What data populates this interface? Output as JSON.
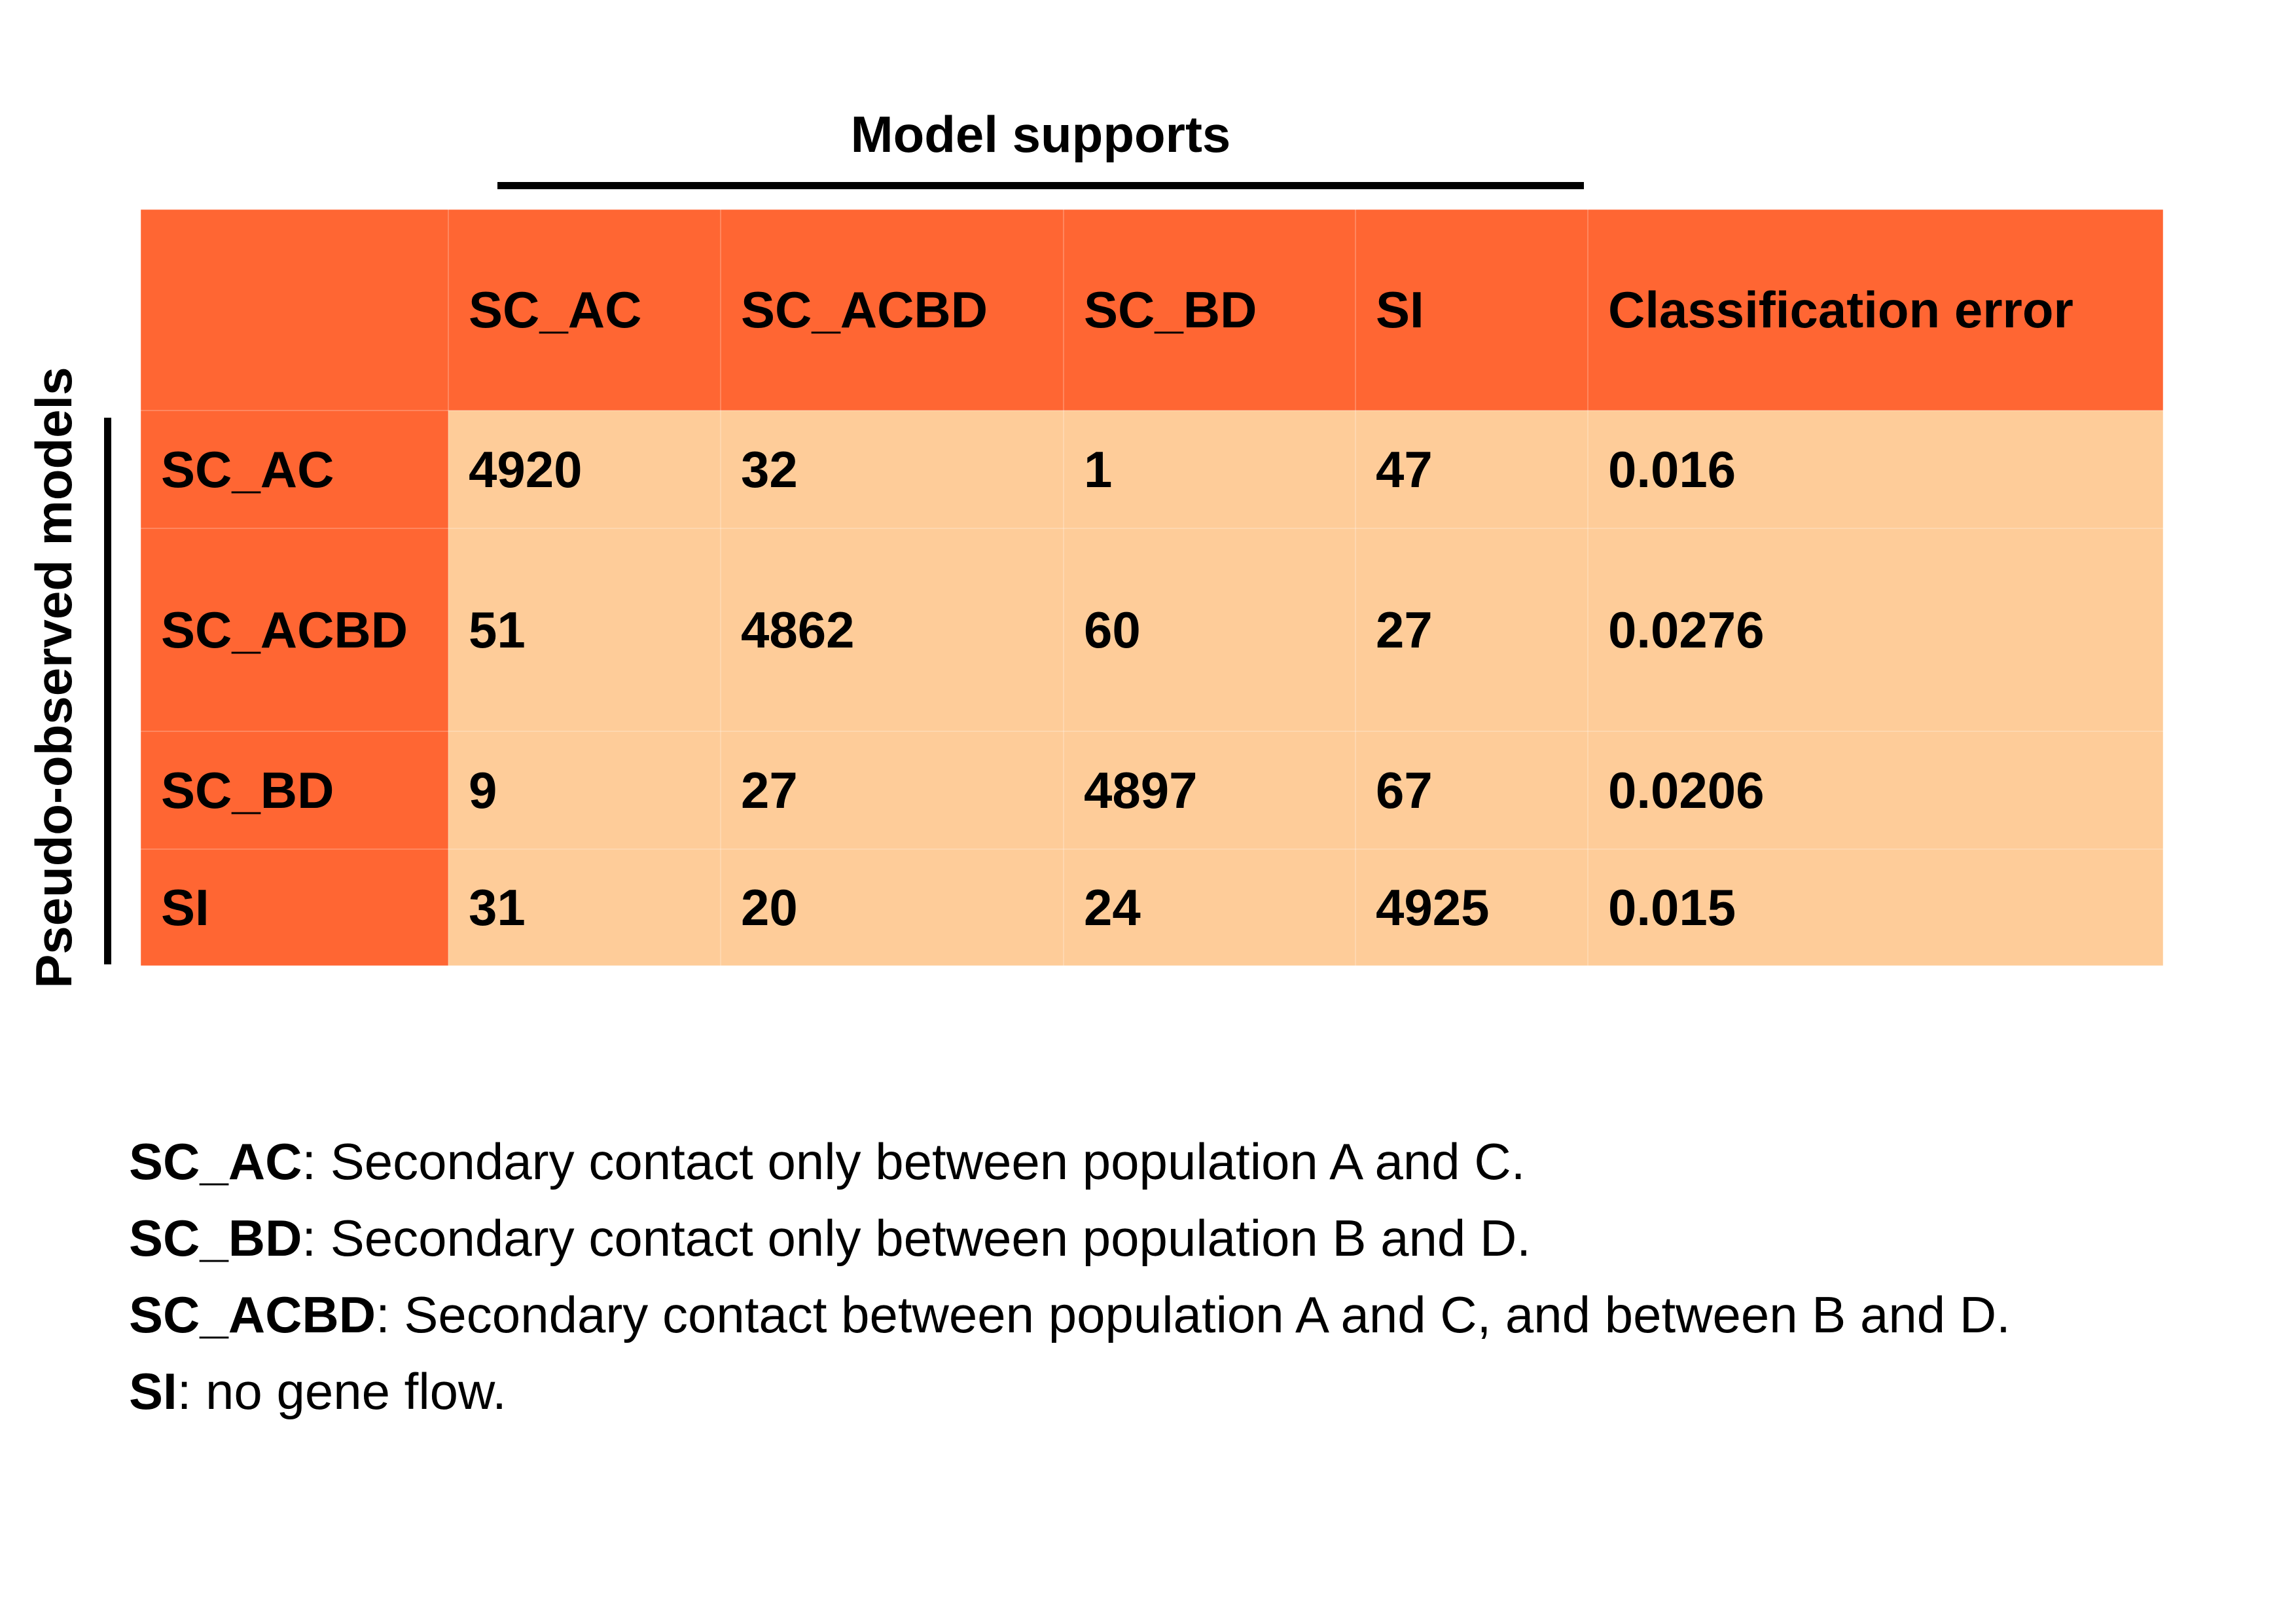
{
  "chart_data": {
    "type": "table",
    "column_group_label": "Model supports",
    "row_group_label": "Pseudo-observed models",
    "columns": [
      "SC_AC",
      "SC_ACBD",
      "SC_BD",
      "SI",
      "Classification error"
    ],
    "rows": [
      {
        "label": "SC_AC",
        "values": [
          "4920",
          "32",
          "1",
          "47",
          "0.016"
        ]
      },
      {
        "label": "SC_ACBD",
        "values": [
          "51",
          "4862",
          "60",
          "27",
          "0.0276"
        ]
      },
      {
        "label": "SC_BD",
        "values": [
          "9",
          "27",
          "4897",
          "67",
          "0.0206"
        ]
      },
      {
        "label": "SI",
        "values": [
          "31",
          "20",
          "24",
          "4925",
          "0.015"
        ]
      }
    ],
    "colors": {
      "header_fill": "#ff6633",
      "cell_fill": "#fecc99"
    }
  },
  "legend": [
    {
      "term": "SC_AC",
      "definition": ": Secondary contact only between population A and C."
    },
    {
      "term": "SC_BD",
      "definition": ": Secondary contact only between population B and D."
    },
    {
      "term": "SC_ACBD",
      "definition": ": Secondary contact between population A and C, and between B and D."
    },
    {
      "term": "SI",
      "definition": ": no gene flow."
    }
  ]
}
